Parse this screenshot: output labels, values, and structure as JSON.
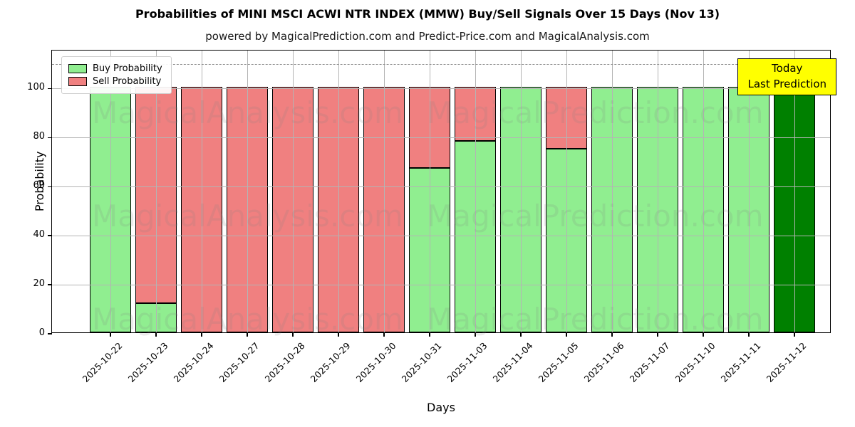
{
  "title": "Probabilities of MINI MSCI ACWI NTR INDEX (MMW) Buy/Sell Signals Over 15 Days (Nov 13)",
  "subtitle": "powered by MagicalPrediction.com and Predict-Price.com and MagicalAnalysis.com",
  "axes": {
    "xlabel": "Days",
    "ylabel": "Probability",
    "yticks": [
      0,
      20,
      40,
      60,
      80,
      100
    ],
    "ymax": 115.5,
    "dashed_line_y": 110,
    "grid": "on"
  },
  "legend": {
    "position": "upper-left",
    "items": [
      {
        "label": "Buy Probability",
        "color": "#90ee90"
      },
      {
        "label": "Sell Probability",
        "color": "#f08080"
      }
    ]
  },
  "annotation": {
    "line1": "Today",
    "line2": "Last Prediction",
    "bg_color": "#ffff00"
  },
  "watermarks": [
    "MagicalAnalysis.com",
    "MagicalPrediction.com"
  ],
  "colors": {
    "buy": "#90ee90",
    "sell": "#f08080",
    "today_bar": "#008000",
    "grid": "#b4b4b4",
    "dashed": "#8c8c8c"
  },
  "chart_data": {
    "type": "bar",
    "stacked": true,
    "title": "Probabilities of MINI MSCI ACWI NTR INDEX (MMW) Buy/Sell Signals Over 15 Days (Nov 13)",
    "xlabel": "Days",
    "ylabel": "Probability",
    "ylim": [
      0,
      115.5
    ],
    "legend_position": "upper left",
    "grid": true,
    "categories": [
      "2025-10-22",
      "2025-10-23",
      "2025-10-24",
      "2025-10-27",
      "2025-10-28",
      "2025-10-29",
      "2025-10-30",
      "2025-10-31",
      "2025-11-03",
      "2025-11-04",
      "2025-11-05",
      "2025-11-06",
      "2025-11-07",
      "2025-11-10",
      "2025-11-11",
      "2025-11-12"
    ],
    "series": [
      {
        "name": "Buy Probability",
        "color": "#90ee90",
        "values": [
          100,
          12,
          0,
          0,
          0,
          0,
          0,
          67,
          78,
          100,
          75,
          100,
          100,
          100,
          100,
          100
        ]
      },
      {
        "name": "Sell Probability",
        "color": "#f08080",
        "values": [
          0,
          88,
          100,
          100,
          100,
          100,
          100,
          33,
          22,
          0,
          25,
          0,
          0,
          0,
          0,
          0
        ]
      }
    ],
    "today_bar": {
      "category": "2025-11-12",
      "index": 15,
      "color": "#008000",
      "value": 100
    },
    "dashed_reference_line": 110
  }
}
